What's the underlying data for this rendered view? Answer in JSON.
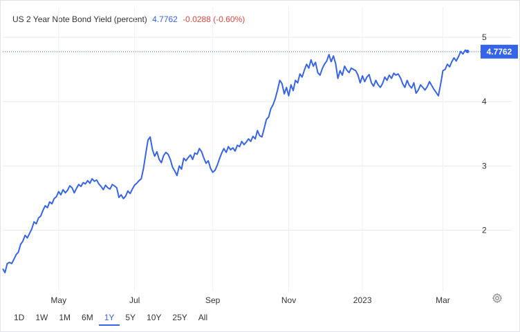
{
  "header": {
    "title": "US 2 Year Note Bond Yield (percent)",
    "price": "4.7762",
    "change": "-0.0288 (-0.60%)"
  },
  "ranges": [
    {
      "label": "1D",
      "active": false
    },
    {
      "label": "1W",
      "active": false
    },
    {
      "label": "1M",
      "active": false
    },
    {
      "label": "6M",
      "active": false
    },
    {
      "label": "1Y",
      "active": true
    },
    {
      "label": "5Y",
      "active": false
    },
    {
      "label": "10Y",
      "active": false
    },
    {
      "label": "25Y",
      "active": false
    },
    {
      "label": "All",
      "active": false
    }
  ],
  "colors": {
    "line": "#3563e9",
    "grid": "#e8e8e8",
    "label_bg": "#3563e9",
    "negative": "#e3473f"
  },
  "icons": {
    "settings": "gear-icon"
  },
  "chart_data": {
    "type": "line",
    "series": [
      {
        "values": [
          1.4,
          1.34,
          1.48,
          1.5,
          1.48,
          1.55,
          1.62,
          1.66,
          1.78,
          1.83,
          1.92,
          1.88,
          1.95,
          2.02,
          2.13,
          2.1,
          2.19,
          2.22,
          2.31,
          2.38,
          2.35,
          2.44,
          2.41,
          2.49,
          2.52,
          2.6,
          2.55,
          2.63,
          2.58,
          2.62,
          2.69,
          2.66,
          2.58,
          2.65,
          2.71,
          2.68,
          2.74,
          2.72,
          2.77,
          2.73,
          2.8,
          2.76,
          2.78,
          2.72,
          2.68,
          2.63,
          2.7,
          2.66,
          2.64,
          2.71,
          2.69,
          2.66,
          2.51,
          2.55,
          2.49,
          2.53,
          2.61,
          2.57,
          2.64,
          2.7,
          2.73,
          2.77,
          2.8,
          2.96,
          3.19,
          3.4,
          3.45,
          3.25,
          3.15,
          3.22,
          3.1,
          3.05,
          3.16,
          3.21,
          3.18,
          3.1,
          2.98,
          2.92,
          2.85,
          3.0,
          2.95,
          3.12,
          3.08,
          3.13,
          3.17,
          3.1,
          3.2,
          3.18,
          3.27,
          3.22,
          3.12,
          3.04,
          3.08,
          2.96,
          2.9,
          2.93,
          3.01,
          3.11,
          3.2,
          3.27,
          3.21,
          3.3,
          3.25,
          3.28,
          3.23,
          3.32,
          3.3,
          3.38,
          3.33,
          3.37,
          3.42,
          3.38,
          3.46,
          3.42,
          3.55,
          3.47,
          3.45,
          3.58,
          3.72,
          3.76,
          3.89,
          3.95,
          4.05,
          4.18,
          4.33,
          4.28,
          4.12,
          4.22,
          4.09,
          4.26,
          4.17,
          4.33,
          4.29,
          4.43,
          4.38,
          4.49,
          4.58,
          4.52,
          4.65,
          4.55,
          4.61,
          4.45,
          4.41,
          4.51,
          4.58,
          4.63,
          4.73,
          4.62,
          4.71,
          4.59,
          4.36,
          4.48,
          4.41,
          4.55,
          4.49,
          4.45,
          4.52,
          4.5,
          4.48,
          4.41,
          4.29,
          4.4,
          4.31,
          4.38,
          4.42,
          4.29,
          4.24,
          4.33,
          4.26,
          4.22,
          4.28,
          4.38,
          4.33,
          4.41,
          4.36,
          4.44,
          4.41,
          4.43,
          4.37,
          4.28,
          4.22,
          4.33,
          4.25,
          4.21,
          4.29,
          4.13,
          4.18,
          4.26,
          4.22,
          4.18,
          4.23,
          4.31,
          4.25,
          4.19,
          4.14,
          4.09,
          4.27,
          4.48,
          4.5,
          4.58,
          4.54,
          4.62,
          4.68,
          4.63,
          4.7,
          4.78,
          4.74,
          4.8,
          4.78
        ]
      }
    ],
    "x_ticks": [
      "May",
      "Jul",
      "Sep",
      "Nov",
      "2023",
      "Mar"
    ],
    "x_tick_index": [
      25,
      59,
      94,
      128,
      161,
      197
    ],
    "y_ticks": [
      2,
      3,
      4,
      5
    ],
    "ylim": [
      1.05,
      5.15
    ],
    "last_value": "4.7762",
    "grid": true
  }
}
